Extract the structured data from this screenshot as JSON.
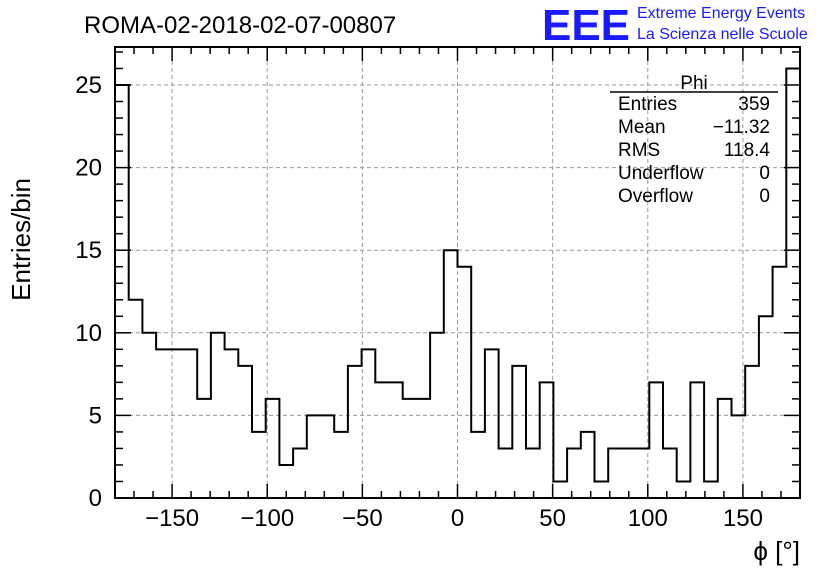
{
  "title": "ROMA-02-2018-02-07-00807",
  "logo": {
    "mark": "EEE",
    "line1": "Extreme Energy Events",
    "line2": "La Scienza nelle Scuole",
    "color": "#1a1aff"
  },
  "stats_box": {
    "name": "Phi",
    "rows": [
      {
        "label": "Entries",
        "value": "359"
      },
      {
        "label": "Mean",
        "value": "−11.32"
      },
      {
        "label": "RMS",
        "value": "118.4"
      },
      {
        "label": "Underflow",
        "value": "0"
      },
      {
        "label": "Overflow",
        "value": "0"
      }
    ]
  },
  "chart_data": {
    "type": "histogram",
    "xlabel": "ϕ [°]",
    "ylabel": "Entries/bin",
    "xlim": [
      -180,
      180
    ],
    "ylim": [
      0,
      27.3
    ],
    "grid": true,
    "bin_width": 7.2,
    "bin_edges_start": -180,
    "values": [
      25,
      12,
      10,
      9,
      9,
      9,
      6,
      10,
      9,
      8,
      4,
      6,
      2,
      3,
      5,
      5,
      4,
      8,
      9,
      7,
      7,
      6,
      6,
      10,
      15,
      14,
      4,
      9,
      3,
      8,
      3,
      7,
      1,
      3,
      4,
      1,
      3,
      3,
      3,
      7,
      3,
      1,
      7,
      1,
      6,
      5,
      8,
      11,
      14,
      26
    ],
    "x_ticks": [
      -150,
      -100,
      -50,
      0,
      50,
      100,
      150
    ],
    "x_tick_labels": [
      "−150",
      "−100",
      "−50",
      "0",
      "50",
      "100",
      "150"
    ],
    "y_ticks": [
      0,
      5,
      10,
      15,
      20,
      25
    ],
    "y_tick_labels": [
      "0",
      "5",
      "10",
      "15",
      "20",
      "25"
    ]
  }
}
